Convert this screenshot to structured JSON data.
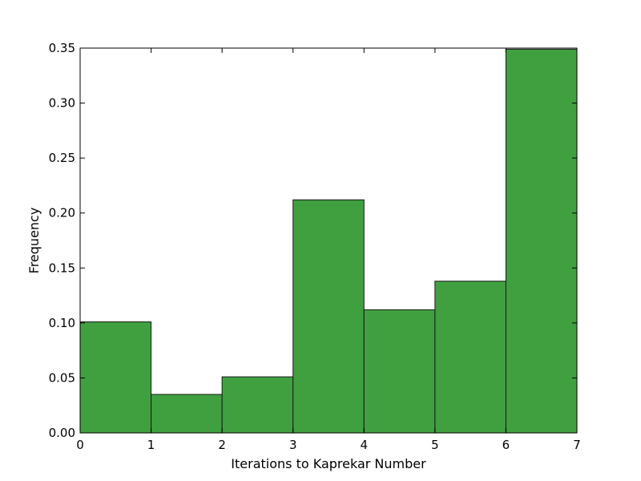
{
  "chart_data": {
    "type": "bar",
    "bins": [
      {
        "x0": 0,
        "x1": 1,
        "value": 0.101
      },
      {
        "x0": 1,
        "x1": 2,
        "value": 0.035
      },
      {
        "x0": 2,
        "x1": 3,
        "value": 0.051
      },
      {
        "x0": 3,
        "x1": 4,
        "value": 0.212
      },
      {
        "x0": 4,
        "x1": 5,
        "value": 0.112
      },
      {
        "x0": 5,
        "x1": 6,
        "value": 0.138
      },
      {
        "x0": 6,
        "x1": 7,
        "value": 0.349
      }
    ],
    "xlabel": "Iterations to Kaprekar Number",
    "ylabel": "Frequency",
    "xlim": [
      0,
      7
    ],
    "ylim": [
      0,
      0.35
    ],
    "xticks": [
      0,
      1,
      2,
      3,
      4,
      5,
      6,
      7
    ],
    "xtick_labels": [
      "0",
      "1",
      "2",
      "3",
      "4",
      "5",
      "6",
      "7"
    ],
    "yticks": [
      0,
      0.05,
      0.1,
      0.15,
      0.2,
      0.25,
      0.3,
      0.35
    ],
    "ytick_labels": [
      "0.00",
      "0.05",
      "0.10",
      "0.15",
      "0.20",
      "0.25",
      "0.30",
      "0.35"
    ],
    "grid": false,
    "bar_color": "#40a040",
    "edge_color": "#1a1a1a"
  }
}
